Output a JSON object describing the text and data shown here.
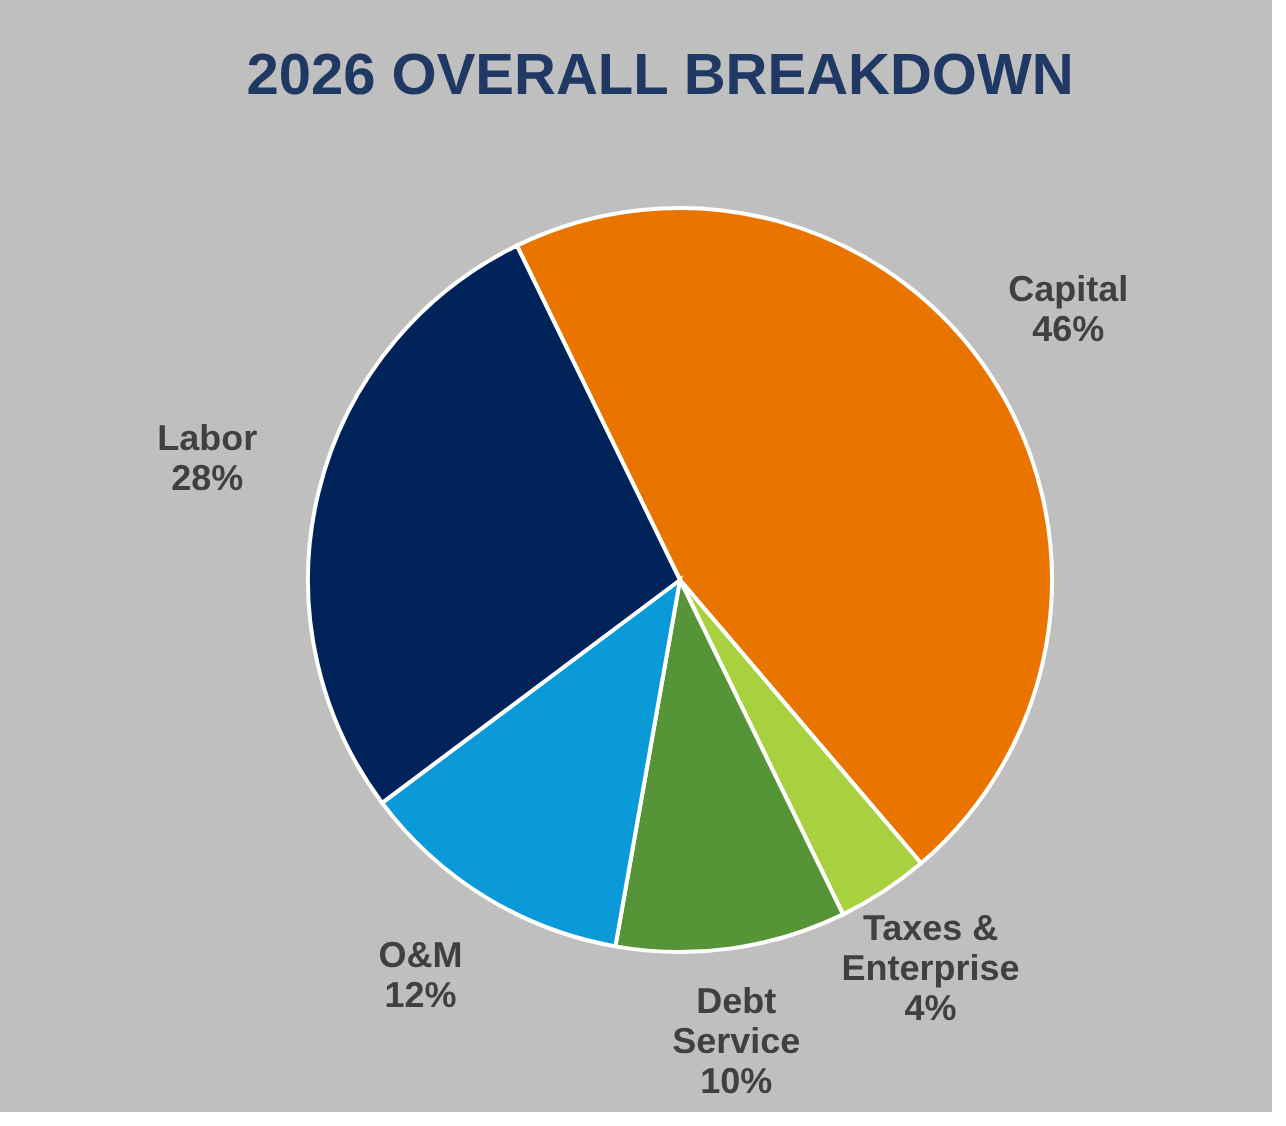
{
  "chart_data": {
    "type": "pie",
    "title": "2026 OVERALL BREAKDOWN",
    "categories": [
      "Capital",
      "Taxes & Enterprise",
      "Debt Service",
      "O&M",
      "Labor"
    ],
    "values": [
      46,
      4,
      10,
      12,
      28
    ],
    "value_labels": [
      "46%",
      "4%",
      "10%",
      "12%",
      "28%"
    ],
    "colors": [
      "#e97500",
      "#a9d13f",
      "#559437",
      "#0b9ad8",
      "#00235a"
    ]
  }
}
